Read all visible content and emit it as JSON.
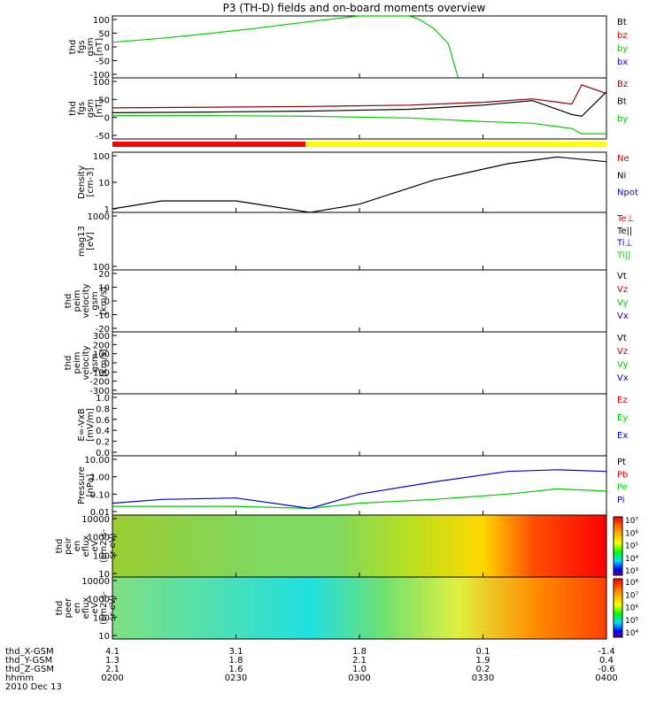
{
  "title": "P3 (TH-D) fields and on-board moments overview",
  "chart_data": {
    "type": "line",
    "x": {
      "start": "0200",
      "end": "0400",
      "ticks": [
        "0200",
        "0230",
        "0300",
        "0330",
        "0400"
      ]
    },
    "panels": [
      {
        "ylabel": [
          "thd",
          "fgs",
          "gsm",
          "[nT]"
        ],
        "yticks": [
          "100",
          "50",
          "0",
          "-50",
          "-100"
        ],
        "ylim": [
          -100,
          100
        ],
        "series": [
          {
            "name": "Bt",
            "color": "#000000",
            "values": []
          },
          {
            "name": "bz",
            "color": "#cc0000",
            "values": []
          },
          {
            "name": "by",
            "color": "#00cc00",
            "x": [
              0,
              0.1,
              0.2,
              0.3,
              0.4,
              0.5,
              0.6,
              0.62,
              0.65,
              0.68,
              0.7
            ],
            "values": [
              15,
              28,
              44,
              62,
              82,
              100,
              100,
              90,
              60,
              10,
              -100
            ]
          },
          {
            "name": "bx",
            "color": "#0000cc",
            "values": []
          }
        ]
      },
      {
        "ylabel": [
          "thd",
          "fgs",
          "gsm",
          "[nT]"
        ],
        "yticks": [
          "100",
          "50",
          "0",
          "-50"
        ],
        "ylim": [
          -75,
          100
        ],
        "series": [
          {
            "name": "Bz",
            "color": "#8b0000",
            "x": [
              0,
              0.2,
              0.4,
              0.6,
              0.75,
              0.85,
              0.93,
              0.95,
              1
            ],
            "values": [
              14,
              16,
              18,
              22,
              30,
              40,
              25,
              80,
              55
            ]
          },
          {
            "name": "Bt",
            "color": "#000000",
            "x": [
              0,
              0.2,
              0.4,
              0.6,
              0.75,
              0.85,
              0.93,
              0.95,
              1
            ],
            "values": [
              0,
              2,
              5,
              10,
              22,
              35,
              -5,
              -10,
              60
            ]
          },
          {
            "name": "by",
            "color": "#00cc00",
            "x": [
              0,
              0.2,
              0.4,
              0.6,
              0.75,
              0.85,
              0.93,
              0.95,
              1
            ],
            "values": [
              -8,
              -8,
              -10,
              -15,
              -25,
              -30,
              -45,
              -60,
              -60
            ]
          }
        ]
      },
      {
        "ylabel": [
          "Density",
          "[cm-3]"
        ],
        "yticks": [
          "100",
          "10",
          "1"
        ],
        "scale": "log",
        "series": [
          {
            "name": "Ne",
            "color": "#cc0000",
            "values": []
          },
          {
            "name": "Ni",
            "color": "#000000",
            "x": [
              0,
              0.1,
              0.25,
              0.4,
              0.5,
              0.65,
              0.8,
              0.9,
              1
            ],
            "values": [
              1.0,
              2.0,
              2.0,
              0.4,
              1.5,
              12,
              50,
              90,
              60
            ]
          },
          {
            "name": "Npot",
            "color": "#0000cc",
            "values": []
          }
        ]
      },
      {
        "ylabel": [
          "mag13",
          "[eV]"
        ],
        "yticks": [
          "1000",
          "100"
        ],
        "scale": "log",
        "series": [
          {
            "name": "Te⊥",
            "color": "#cc0000",
            "values": []
          },
          {
            "name": "Te||",
            "color": "#000000",
            "values": []
          },
          {
            "name": "Ti⊥",
            "color": "#0000cc",
            "values": []
          },
          {
            "name": "Ti||",
            "color": "#00cc00",
            "values": []
          }
        ]
      },
      {
        "ylabel": [
          "thd",
          "peim",
          "velocity",
          "gsm",
          "[km/s]"
        ],
        "yticks": [
          "20",
          "10",
          "0",
          "-10",
          "-20"
        ],
        "ylim": [
          -20,
          20
        ],
        "series": [
          {
            "name": "Vt",
            "color": "#000000",
            "values": []
          },
          {
            "name": "Vz",
            "color": "#cc0000",
            "values": []
          },
          {
            "name": "Vy",
            "color": "#00cc00",
            "values": []
          },
          {
            "name": "Vx",
            "color": "#0000cc",
            "values": []
          }
        ]
      },
      {
        "ylabel": [
          "thd",
          "peim",
          "velocity",
          "gsm",
          "[km/s]"
        ],
        "yticks": [
          "300",
          "200",
          "100",
          "0",
          "-100",
          "-200",
          "-300"
        ],
        "ylim": [
          -300,
          300
        ],
        "series": [
          {
            "name": "Vt",
            "color": "#000000",
            "values": []
          },
          {
            "name": "Vz",
            "color": "#cc0000",
            "values": []
          },
          {
            "name": "Vy",
            "color": "#00cc00",
            "values": []
          },
          {
            "name": "Vx",
            "color": "#0000cc",
            "values": []
          }
        ]
      },
      {
        "ylabel": [
          "E=-VxB",
          "[mV/m]"
        ],
        "yticks": [
          "1.0",
          "0.8",
          "0.6",
          "0.4",
          "0.2",
          "0.0"
        ],
        "ylim": [
          0,
          1
        ],
        "series": [
          {
            "name": "Ez",
            "color": "#cc0000",
            "values": []
          },
          {
            "name": "Ey",
            "color": "#00cc00",
            "values": []
          },
          {
            "name": "Ex",
            "color": "#0000cc",
            "values": []
          }
        ]
      },
      {
        "ylabel": [
          "Pressure",
          "[nPa]"
        ],
        "yticks": [
          "10.00",
          "1.00",
          "0.10",
          "0.01"
        ],
        "scale": "log",
        "series": [
          {
            "name": "Pt",
            "color": "#000000",
            "values": []
          },
          {
            "name": "Pb",
            "color": "#cc0000",
            "values": []
          },
          {
            "name": "Pe",
            "color": "#00cc00",
            "x": [
              0,
              0.1,
              0.25,
              0.4,
              0.5,
              0.65,
              0.8,
              0.9,
              1
            ],
            "values": [
              0.02,
              0.02,
              0.02,
              0.015,
              0.03,
              0.05,
              0.1,
              0.2,
              0.15
            ]
          },
          {
            "name": "Pi",
            "color": "#0000cc",
            "x": [
              0,
              0.1,
              0.25,
              0.4,
              0.5,
              0.65,
              0.8,
              0.9,
              1
            ],
            "values": [
              0.03,
              0.05,
              0.06,
              0.015,
              0.1,
              0.5,
              2.0,
              2.5,
              2.0
            ]
          }
        ]
      },
      {
        "ylabel": [
          "thd",
          "peir",
          "en",
          "eflux",
          "eV",
          "(cm2-s-",
          "sr-eV)"
        ],
        "yticks": [
          "10000",
          "1000",
          "100",
          "10"
        ],
        "scale": "log",
        "type": "heatmap",
        "colorbar": [
          "10⁷",
          "10⁶",
          "10⁵",
          "10⁴",
          "10³"
        ]
      },
      {
        "ylabel": [
          "thd",
          "peer",
          "en",
          "eflux",
          "eV",
          "(cm2-s-",
          "sr-eV)"
        ],
        "yticks": [
          "10000",
          "1000",
          "100",
          "10"
        ],
        "scale": "log",
        "type": "heatmap",
        "colorbar": [
          "10⁸",
          "10⁷",
          "10⁶",
          "10⁵",
          "10⁴"
        ]
      }
    ],
    "ephemeris": [
      {
        "label": "thd_X-GSM",
        "values": [
          "4.1",
          "3.1",
          "1.8",
          "0.1",
          "-1.4"
        ]
      },
      {
        "label": "thd_Y-GSM",
        "values": [
          "1.3",
          "1.8",
          "2.1",
          "1.9",
          "0.4"
        ]
      },
      {
        "label": "thd_Z-GSM",
        "values": [
          "2.1",
          "1.6",
          "1.0",
          "0.2",
          "-0.6"
        ]
      },
      {
        "label": "hhmm",
        "values": [
          "0200",
          "0230",
          "0300",
          "0330",
          "0400"
        ]
      }
    ],
    "date": "2010 Dec 13"
  }
}
